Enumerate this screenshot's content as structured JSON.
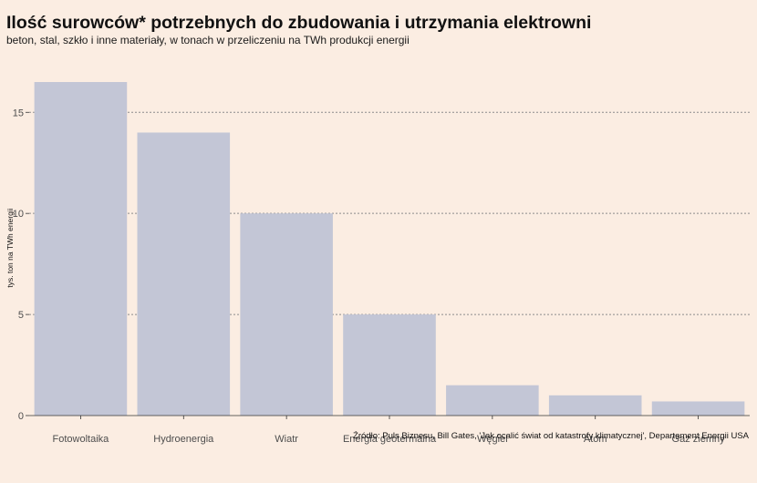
{
  "chart_data": {
    "type": "bar",
    "title": "Ilość surowców* potrzebnych do zbudowania i utrzymania elektrowni",
    "subtitle": "beton, stal, szkło i inne materiały, w tonach w przeliczeniu na TWh produkcji energii",
    "xlabel": "",
    "ylabel": "tys. ton na TWh energii",
    "categories": [
      "Fotowoltaika",
      "Hydroenergia",
      "Wiatr",
      "Energia geotermalna",
      "Węgiel",
      "Atom",
      "Gaz ziemny"
    ],
    "values": [
      16.5,
      14,
      10,
      5,
      1.5,
      1,
      0.7
    ],
    "ylim": [
      0,
      16.5
    ],
    "yticks": [
      "0",
      "5",
      "10",
      "15"
    ],
    "grid": "horizontal dotted",
    "legend": "none",
    "caption": "Źródło: Puls Biznesu, Bill Gates, 'Jak ocalić świat od katastrofy klimatycznej', Departament Energii USA",
    "colors": {
      "background": "#fbede2",
      "bar": "#c3c6d6",
      "grid": "#8c8c8c",
      "axis": "#333333",
      "text": "#111111",
      "tick_text": "#4d4d4d"
    }
  }
}
